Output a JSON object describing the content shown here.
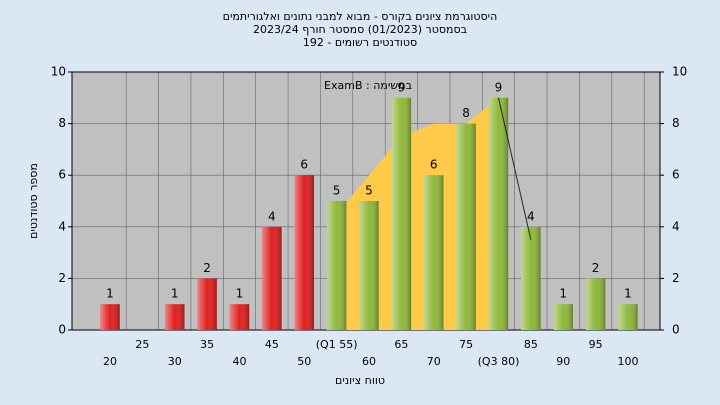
{
  "chart_data": {
    "type": "bar",
    "title": "היסטוגרמת ציונים בקורס - מבוא למבני נתונים ואלגוריתמים",
    "subtitle": "בסמסטר  (01/2023)  סמסטר חורף  2023/24",
    "subtitle2": "סטודנטים רשומים - 192",
    "annotation": "במשימה : ExamB",
    "x_label": "טווח ציונים",
    "y_label": "מספר סטודנטים",
    "categories": [
      "20",
      "25",
      "30",
      "35",
      "40",
      "45",
      "50",
      "(Q1 55)",
      "60",
      "65",
      "70",
      "75",
      "(Q3 80)",
      "85",
      "90",
      "95",
      "100"
    ],
    "values": [
      1,
      null,
      1,
      2,
      1,
      4,
      6,
      5,
      5,
      9,
      6,
      8,
      9,
      4,
      1,
      2,
      1
    ],
    "colors": [
      "#e02020",
      "#e02020",
      "#e02020",
      "#e02020",
      "#e02020",
      "#e02020",
      "#e02020",
      "#8fb83a",
      "#8fb83a",
      "#8fb83a",
      "#8fb83a",
      "#8fb83a",
      "#8fb83a",
      "#8fb83a",
      "#8fb83a",
      "#8fb83a",
      "#8fb83a"
    ],
    "band": {
      "color": "#ffc94a",
      "values": [
        null,
        null,
        null,
        null,
        null,
        null,
        null,
        4.5,
        6,
        7.5,
        8,
        8,
        9,
        null,
        null,
        null,
        null
      ]
    },
    "trend": {
      "color": "#222222",
      "values": [
        null,
        null,
        null,
        null,
        null,
        null,
        null,
        null,
        null,
        null,
        null,
        null,
        9,
        3.5,
        null,
        null,
        null
      ]
    },
    "ylim": [
      0,
      10
    ],
    "yticks": [
      0,
      2,
      4,
      6,
      8,
      10
    ],
    "y2lim": [
      0,
      10
    ],
    "y2ticks": [
      0,
      2,
      4,
      6,
      8,
      10
    ],
    "grid": true
  }
}
